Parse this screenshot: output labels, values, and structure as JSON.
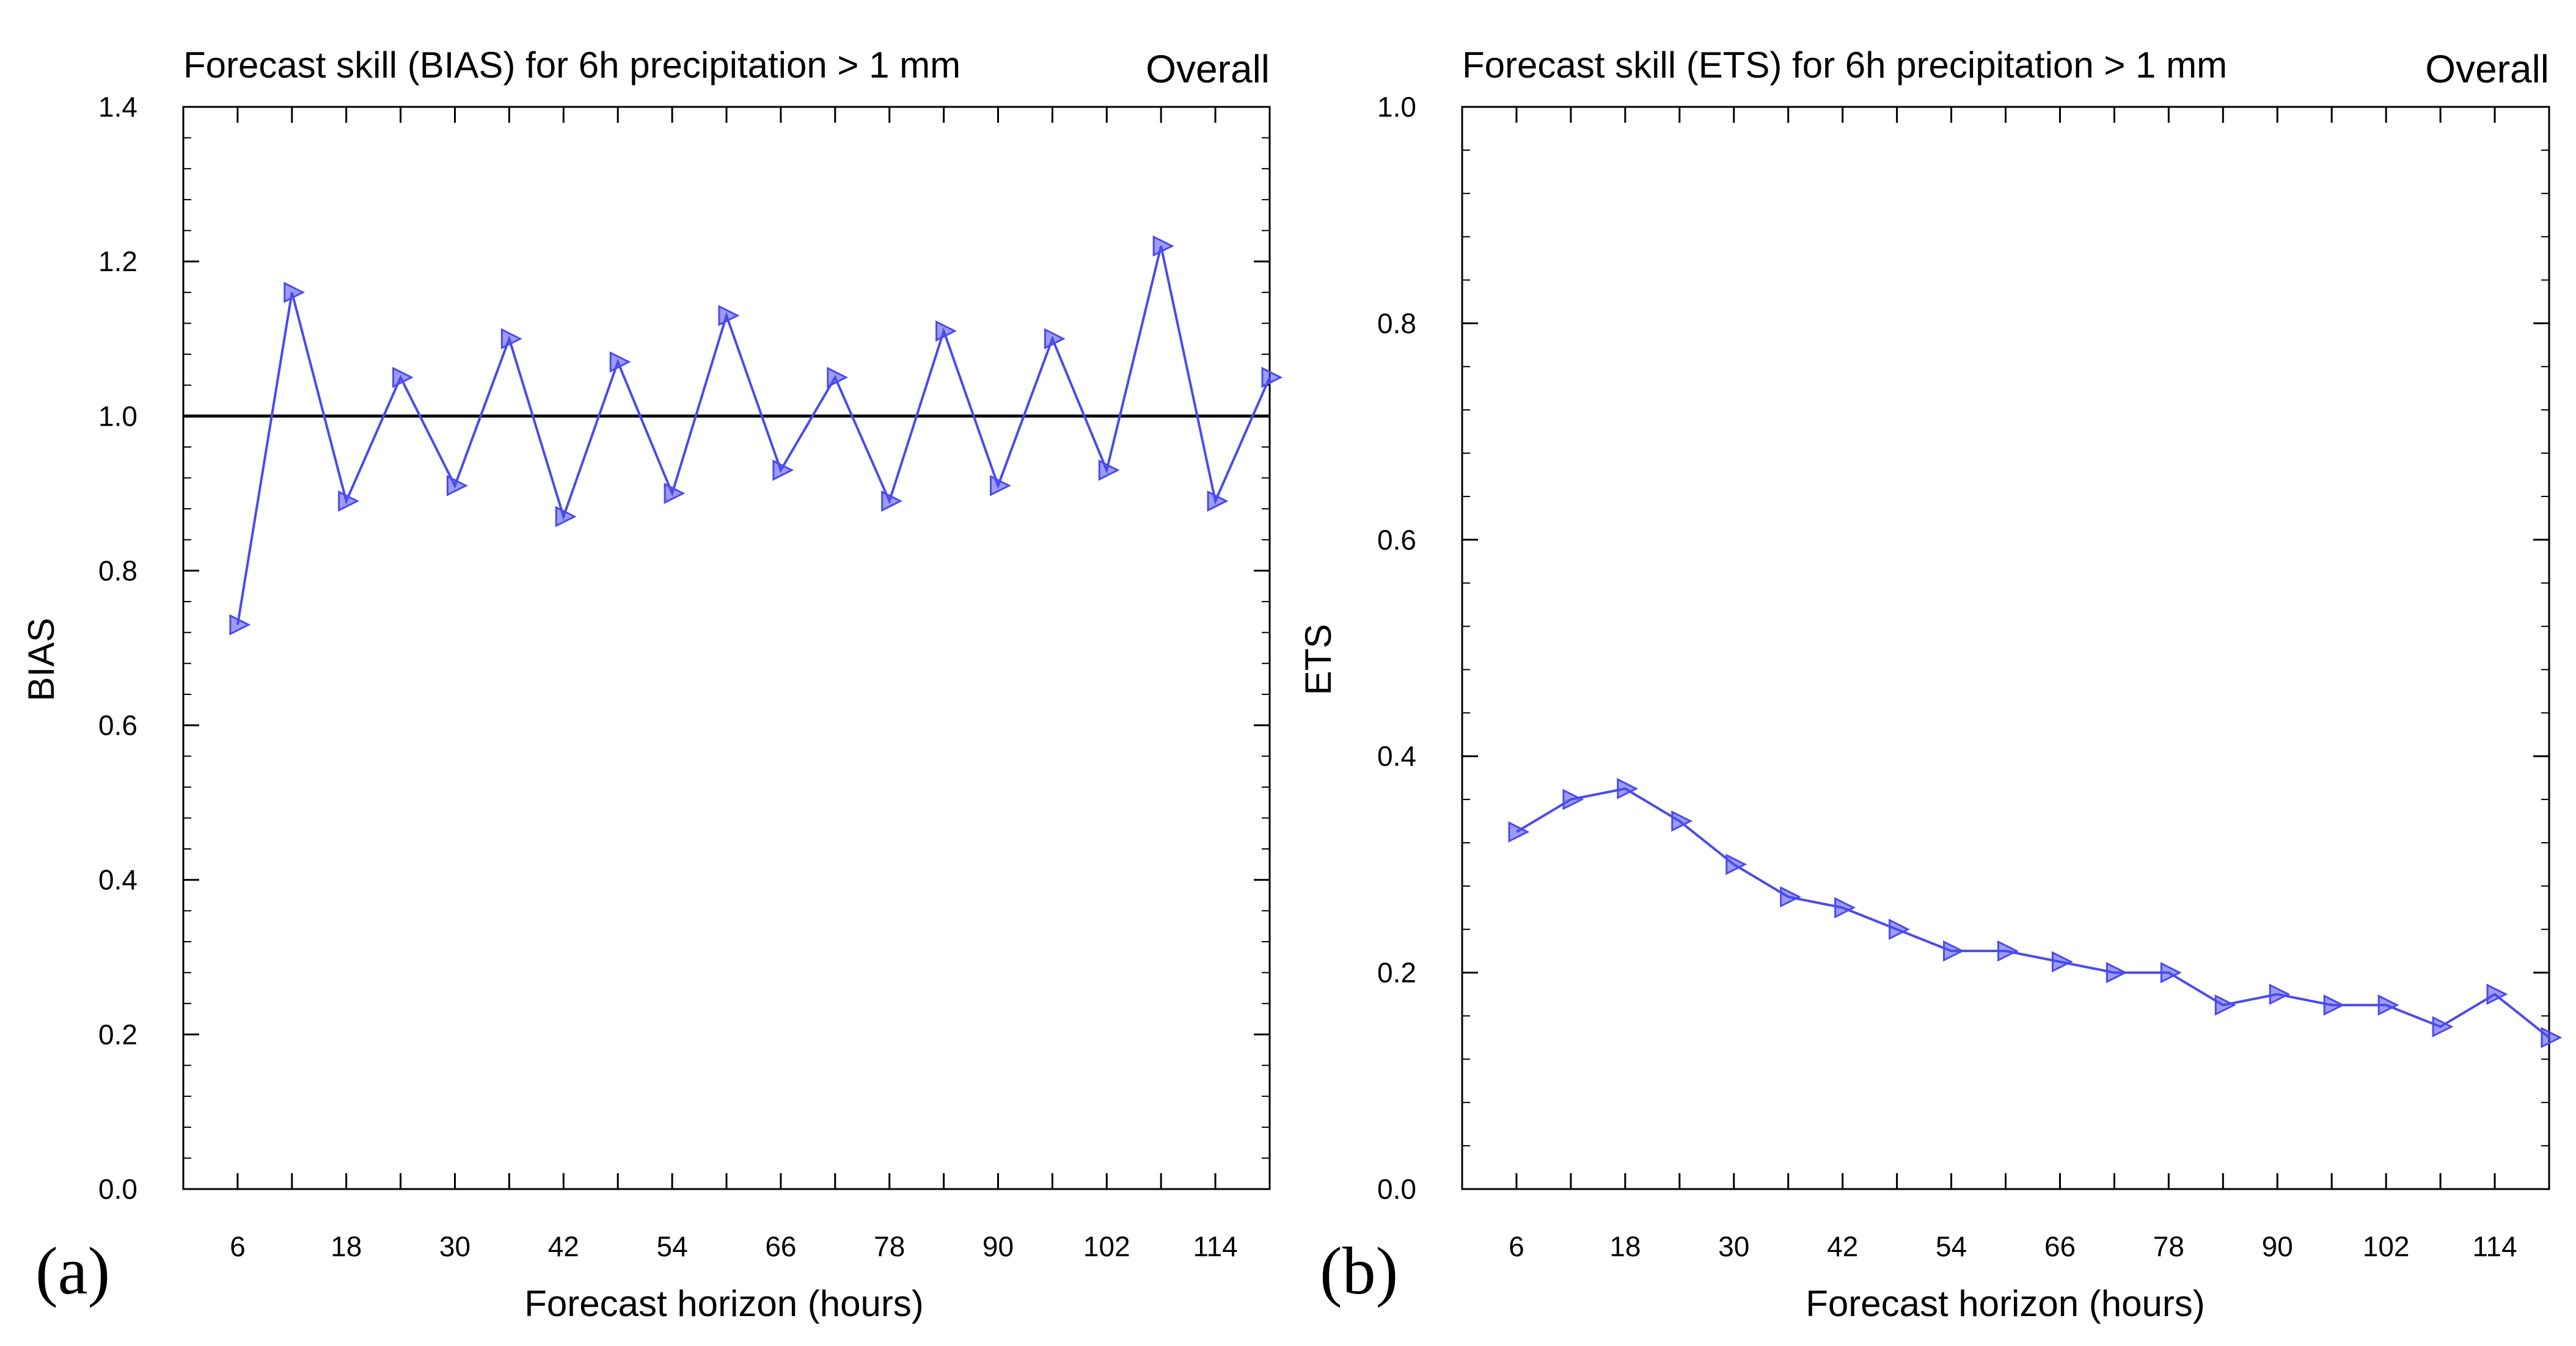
{
  "chart_data": [
    {
      "panel": "(a)",
      "type": "line",
      "title": "Forecast skill (BIAS) for 6h precipitation > 1 mm",
      "corner_label": "Overall",
      "xlabel": "Forecast horizon (hours)",
      "ylabel": "BIAS",
      "xlim": [
        0,
        120
      ],
      "ylim": [
        0.0,
        1.4
      ],
      "xticks": [
        6,
        18,
        30,
        42,
        54,
        66,
        78,
        90,
        102,
        114
      ],
      "yticks": [
        0.0,
        0.2,
        0.4,
        0.6,
        0.8,
        1.0,
        1.2,
        1.4
      ],
      "ytick_labels": [
        "0.0",
        "0.2",
        "0.4",
        "0.6",
        "0.8",
        "1.0",
        "1.2",
        "1.4"
      ],
      "reference_line": 1.0,
      "series": [
        {
          "name": "BIAS",
          "color": "#4a4af0",
          "x": [
            6,
            12,
            18,
            24,
            30,
            36,
            42,
            48,
            54,
            60,
            66,
            72,
            78,
            84,
            90,
            96,
            102,
            108,
            114,
            120
          ],
          "values": [
            0.73,
            1.16,
            0.89,
            1.05,
            0.91,
            1.1,
            0.87,
            1.07,
            0.9,
            1.13,
            0.93,
            1.05,
            0.89,
            1.11,
            0.91,
            1.1,
            0.93,
            1.22,
            0.89,
            1.05
          ]
        }
      ]
    },
    {
      "panel": "(b)",
      "type": "line",
      "title": "Forecast skill (ETS) for 6h precipitation > 1 mm",
      "corner_label": "Overall",
      "xlabel": "Forecast horizon (hours)",
      "ylabel": "ETS",
      "xlim": [
        0,
        120
      ],
      "ylim": [
        0.0,
        1.0
      ],
      "xticks": [
        6,
        18,
        30,
        42,
        54,
        66,
        78,
        90,
        102,
        114
      ],
      "yticks": [
        0.0,
        0.2,
        0.4,
        0.6,
        0.8,
        1.0
      ],
      "ytick_labels": [
        "0.0",
        "0.2",
        "0.4",
        "0.6",
        "0.8",
        "1.0"
      ],
      "series": [
        {
          "name": "ETS",
          "color": "#4a4af0",
          "x": [
            6,
            12,
            18,
            24,
            30,
            36,
            42,
            48,
            54,
            60,
            66,
            72,
            78,
            84,
            90,
            96,
            102,
            108,
            114,
            120
          ],
          "values": [
            0.33,
            0.36,
            0.37,
            0.34,
            0.3,
            0.27,
            0.26,
            0.24,
            0.22,
            0.22,
            0.21,
            0.2,
            0.2,
            0.17,
            0.18,
            0.17,
            0.17,
            0.15,
            0.18,
            0.14
          ]
        }
      ]
    }
  ],
  "colors": {
    "axis": "#000000",
    "reference_line": "#000000"
  }
}
